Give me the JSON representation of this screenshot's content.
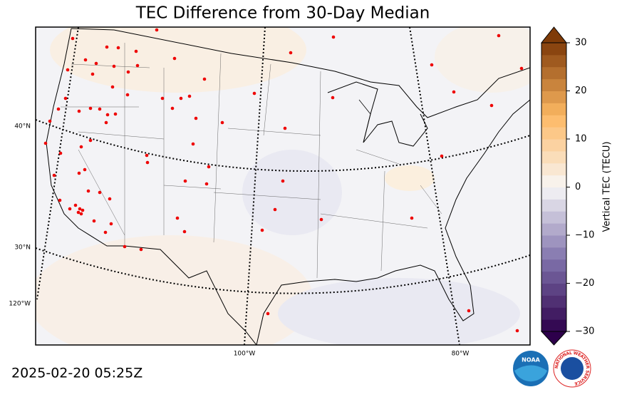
{
  "title": "TEC Difference from 30-Day Median",
  "timestamp": "2025-02-20 05:25Z",
  "map": {
    "lat_labels": [
      "40°N",
      "30°N"
    ],
    "lon_labels": [
      "120°W",
      "100°W",
      "80°W"
    ]
  },
  "colorbar": {
    "label": "Vertical TEC (TECU)",
    "lim": [
      -30,
      30
    ],
    "ticks": [
      {
        "value": -30,
        "label": "−30"
      },
      {
        "value": -20,
        "label": "−20"
      },
      {
        "value": -10,
        "label": "−10"
      },
      0,
      10,
      20,
      30
    ]
  },
  "logos": {
    "noaa": "NOAA",
    "nws": "NATIONAL WEATHER SERVICE"
  }
}
